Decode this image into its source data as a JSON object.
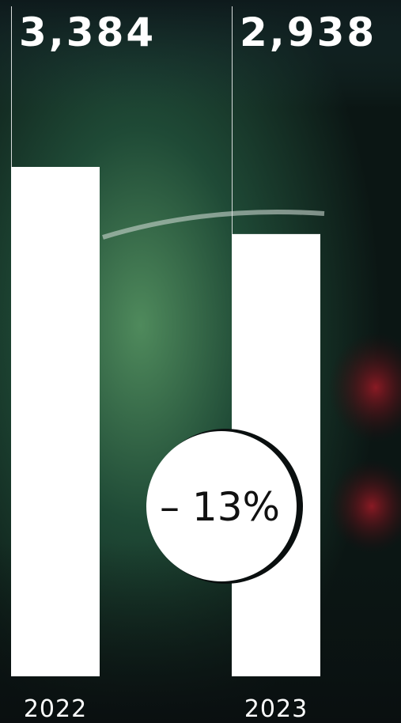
{
  "chart_data": {
    "type": "bar",
    "categories": [
      "2022",
      "2023"
    ],
    "values": [
      3384,
      2938
    ],
    "value_labels": [
      "3,384",
      "2,938"
    ],
    "color": "#ffffff",
    "annotation": "– 13%"
  }
}
